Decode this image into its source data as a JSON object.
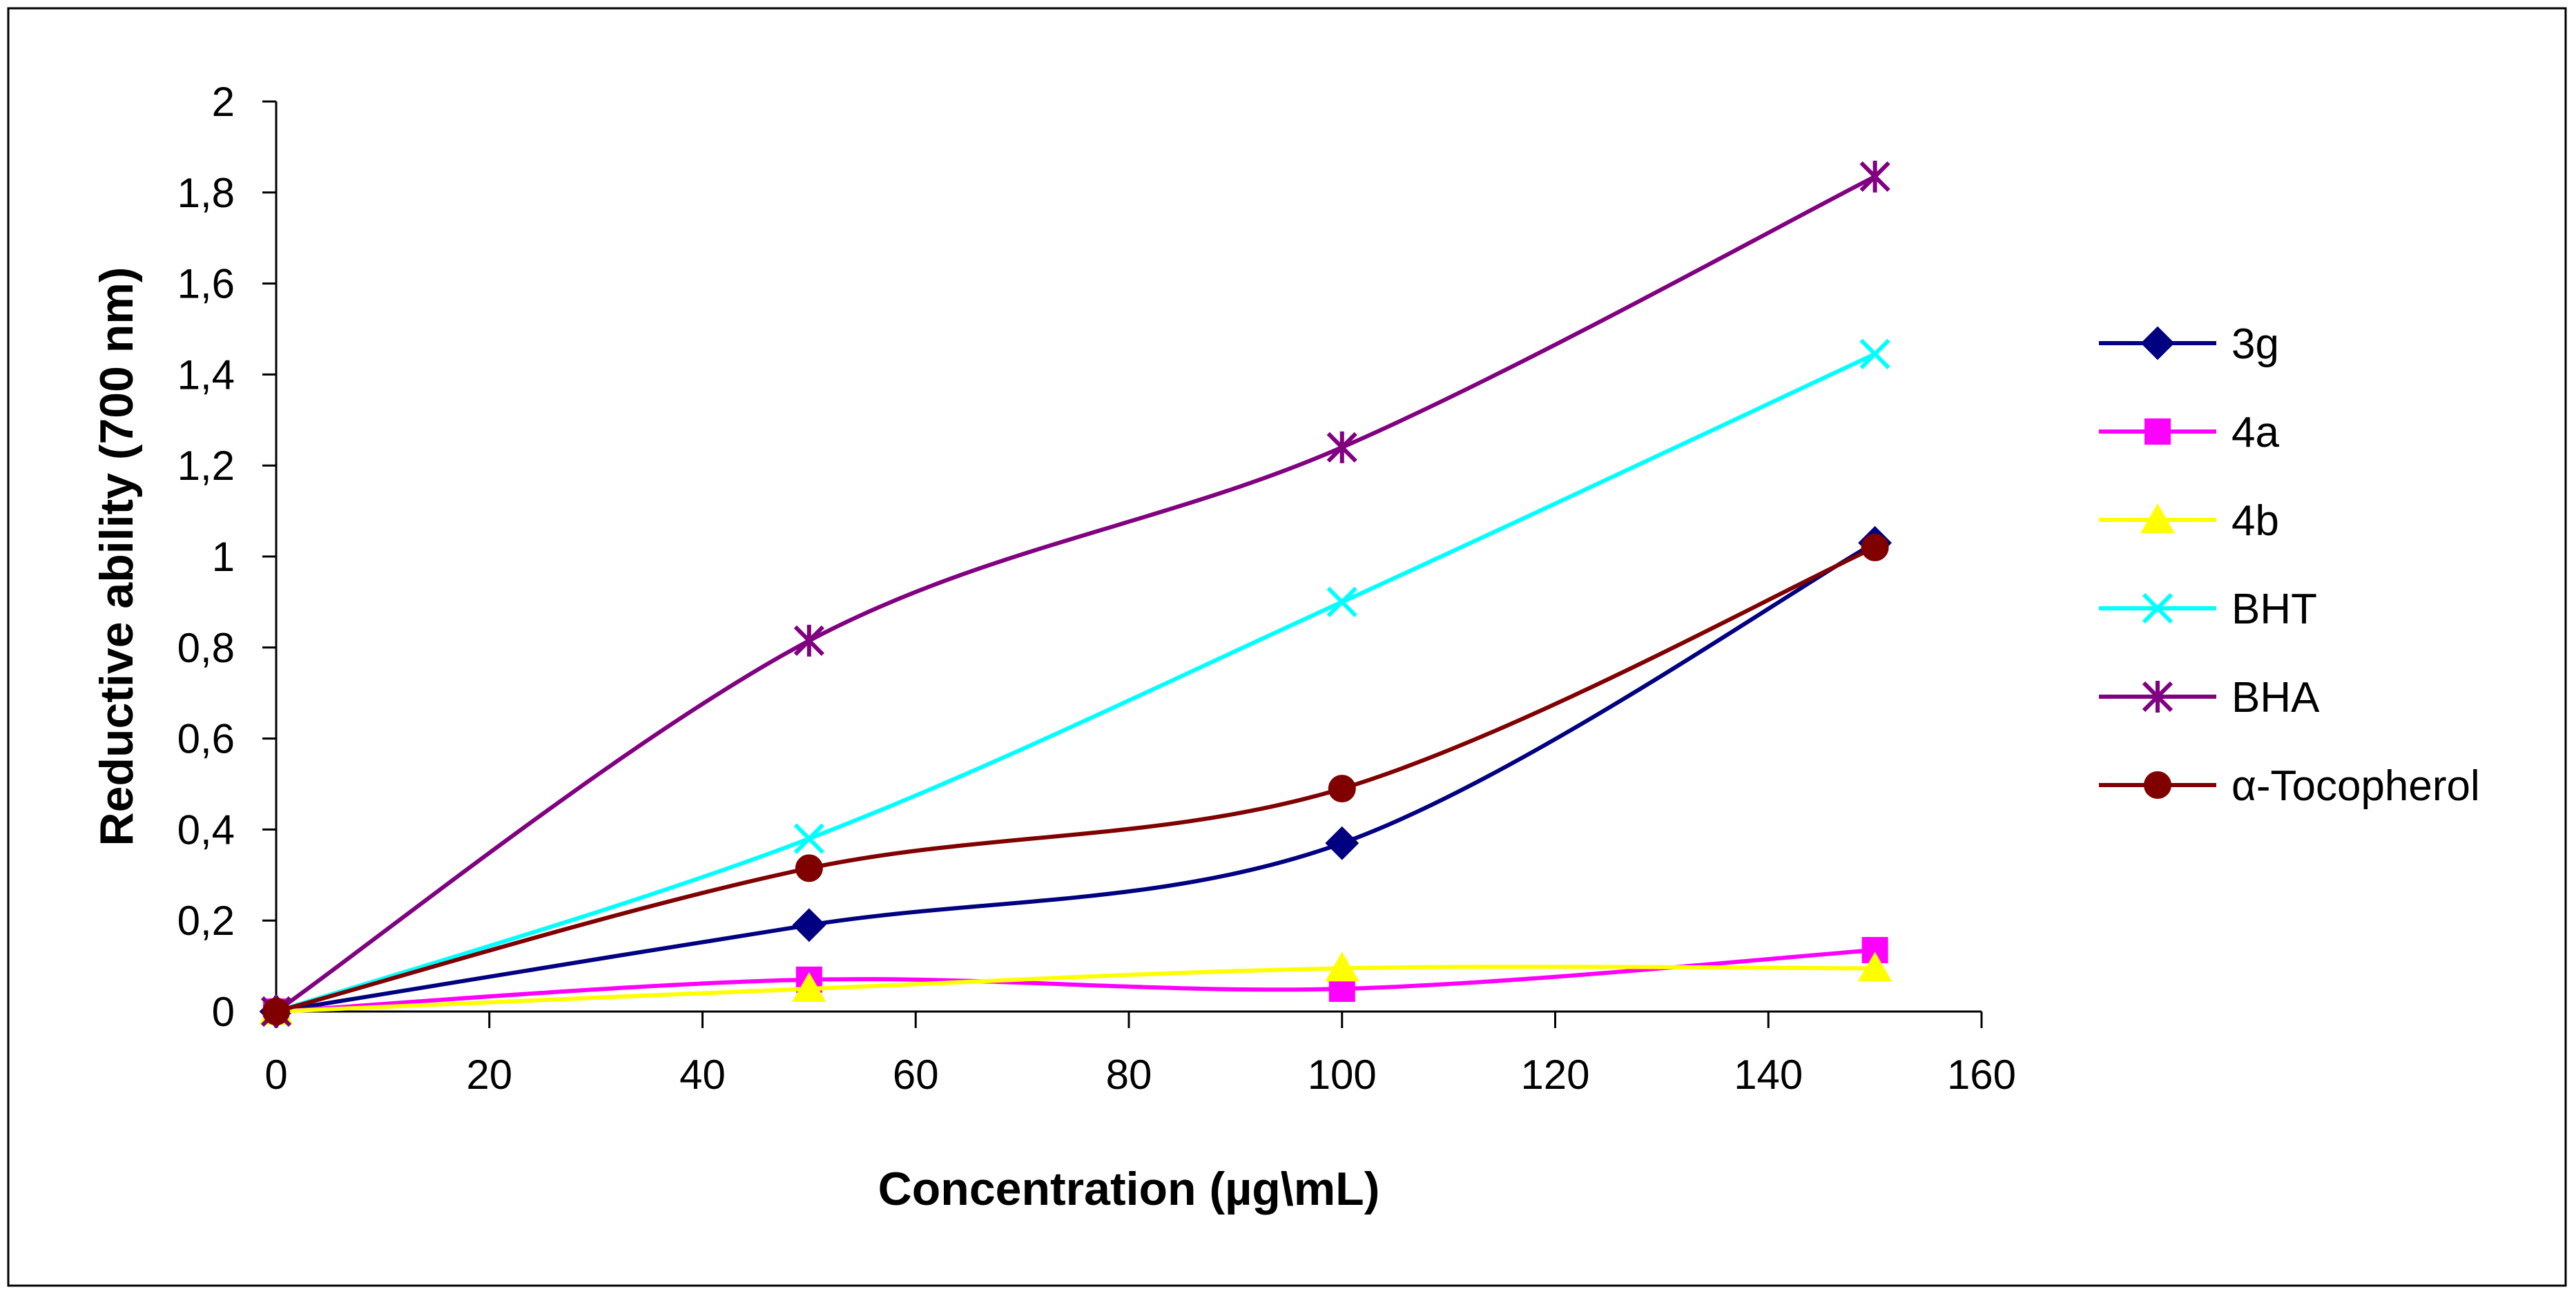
{
  "chart_data": {
    "type": "line",
    "title": "",
    "xlabel": "Concentration (µg\\mL)",
    "ylabel": "Reductive ability (700 nm)",
    "xlim": [
      0,
      160
    ],
    "ylim": [
      0,
      2
    ],
    "x_ticks": [
      0,
      20,
      40,
      60,
      80,
      100,
      120,
      140,
      160
    ],
    "x_tick_labels": [
      "0",
      "20",
      "40",
      "60",
      "80",
      "100",
      "120",
      "140",
      "160"
    ],
    "y_ticks": [
      0,
      0.2,
      0.4,
      0.6,
      0.8,
      1.0,
      1.2,
      1.4,
      1.6,
      1.8,
      2.0
    ],
    "y_tick_labels": [
      "0",
      "0,2",
      "0,4",
      "0,6",
      "0,8",
      "1",
      "1,2",
      "1,4",
      "1,6",
      "1,8",
      "2"
    ],
    "grid": false,
    "legend_position": "right",
    "x": [
      0,
      50,
      100,
      150
    ],
    "series": [
      {
        "name": "3g",
        "marker": "diamond",
        "color": "#000080",
        "values": [
          0,
          0.19,
          0.37,
          1.03
        ]
      },
      {
        "name": "4a",
        "marker": "square",
        "color": "#FF00FF",
        "values": [
          0,
          0.07,
          0.05,
          0.135
        ]
      },
      {
        "name": "4b",
        "marker": "triangle",
        "color": "#FFFF00",
        "values": [
          0,
          0.05,
          0.095,
          0.095
        ]
      },
      {
        "name": "BHT",
        "marker": "x",
        "color": "#00FFFF",
        "values": [
          0,
          0.38,
          0.9,
          1.445
        ]
      },
      {
        "name": "BHA",
        "marker": "asterisk",
        "color": "#800080",
        "values": [
          0,
          0.815,
          1.24,
          1.835
        ]
      },
      {
        "name": "α-Tocopherol",
        "marker": "circle",
        "color": "#800000",
        "values": [
          0,
          0.315,
          0.49,
          1.02
        ]
      }
    ]
  }
}
